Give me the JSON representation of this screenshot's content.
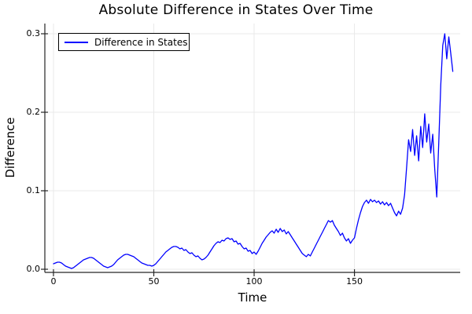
{
  "chart_data": {
    "type": "line",
    "title": "Absolute Difference in States Over Time",
    "xlabel": "Time",
    "ylabel": "Difference",
    "grid": true,
    "legend_position": "top-left",
    "xlim": [
      -4.3,
      202.7
    ],
    "ylim": [
      -0.004,
      0.313
    ],
    "xticks": [
      0,
      50,
      100,
      150
    ],
    "xtick_labels": [
      "0",
      "50",
      "100",
      "150"
    ],
    "yticks": [
      0.0,
      0.1,
      0.2,
      0.3
    ],
    "ytick_labels": [
      "0.0",
      "0.1",
      "0.2",
      "0.3"
    ],
    "colors": {
      "series": "#0000ff",
      "grid": "#e9e9e9",
      "axis": "#262626",
      "text": "#000000",
      "background": "#ffffff"
    },
    "series": [
      {
        "name": "Difference in States",
        "color": "#0000ff",
        "x_start": 0,
        "x_step": 1,
        "values": [
          0.007,
          0.008,
          0.009,
          0.009,
          0.008,
          0.006,
          0.004,
          0.003,
          0.002,
          0.001,
          0.002,
          0.004,
          0.006,
          0.008,
          0.01,
          0.012,
          0.013,
          0.014,
          0.015,
          0.015,
          0.014,
          0.012,
          0.01,
          0.008,
          0.006,
          0.004,
          0.003,
          0.002,
          0.003,
          0.004,
          0.006,
          0.009,
          0.012,
          0.014,
          0.016,
          0.018,
          0.019,
          0.019,
          0.018,
          0.017,
          0.016,
          0.014,
          0.012,
          0.01,
          0.008,
          0.007,
          0.006,
          0.005,
          0.005,
          0.004,
          0.005,
          0.007,
          0.01,
          0.013,
          0.016,
          0.019,
          0.022,
          0.024,
          0.026,
          0.028,
          0.029,
          0.029,
          0.028,
          0.026,
          0.027,
          0.024,
          0.025,
          0.022,
          0.02,
          0.021,
          0.018,
          0.016,
          0.017,
          0.014,
          0.012,
          0.013,
          0.015,
          0.018,
          0.022,
          0.026,
          0.03,
          0.033,
          0.035,
          0.034,
          0.037,
          0.036,
          0.039,
          0.04,
          0.038,
          0.039,
          0.035,
          0.036,
          0.032,
          0.033,
          0.029,
          0.026,
          0.027,
          0.023,
          0.024,
          0.02,
          0.022,
          0.019,
          0.023,
          0.028,
          0.033,
          0.037,
          0.041,
          0.044,
          0.047,
          0.049,
          0.046,
          0.051,
          0.047,
          0.052,
          0.048,
          0.05,
          0.045,
          0.048,
          0.044,
          0.04,
          0.036,
          0.032,
          0.028,
          0.024,
          0.02,
          0.018,
          0.016,
          0.019,
          0.017,
          0.022,
          0.027,
          0.032,
          0.037,
          0.042,
          0.047,
          0.052,
          0.057,
          0.062,
          0.06,
          0.062,
          0.056,
          0.052,
          0.048,
          0.043,
          0.046,
          0.04,
          0.036,
          0.039,
          0.033,
          0.037,
          0.04,
          0.052,
          0.063,
          0.072,
          0.08,
          0.085,
          0.088,
          0.084,
          0.089,
          0.086,
          0.088,
          0.085,
          0.087,
          0.083,
          0.086,
          0.082,
          0.085,
          0.081,
          0.084,
          0.078,
          0.072,
          0.068,
          0.074,
          0.07,
          0.078,
          0.095,
          0.13,
          0.165,
          0.15,
          0.178,
          0.145,
          0.17,
          0.138,
          0.182,
          0.155,
          0.198,
          0.162,
          0.185,
          0.148,
          0.172,
          0.128,
          0.092,
          0.16,
          0.235,
          0.285,
          0.3,
          0.268,
          0.296,
          0.275,
          0.252
        ]
      }
    ]
  }
}
